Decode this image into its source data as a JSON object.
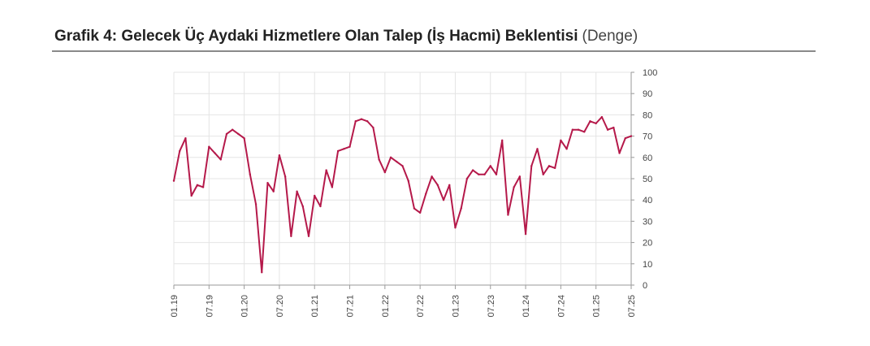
{
  "title": {
    "main": "Grafik 4: Gelecek Üç Aydaki Hizmetlere Olan Talep (İş Hacmi) Beklentisi",
    "sub": "(Denge)"
  },
  "chart_data": {
    "type": "line",
    "ylim": [
      0,
      100
    ],
    "yticks": [
      0,
      10,
      20,
      30,
      40,
      50,
      60,
      70,
      80,
      90,
      100
    ],
    "xtick_labels": [
      "01.19",
      "07.19",
      "01.20",
      "07.20",
      "01.21",
      "07.21",
      "01.22",
      "07.22",
      "01.23",
      "07.23",
      "01.24",
      "07.24",
      "01.25",
      "07.25"
    ],
    "grid": true,
    "y_axis_position": "right",
    "line_color": "#b5194a",
    "series": [
      {
        "x": [
          "01.19",
          "02.19",
          "03.19",
          "04.19",
          "05.19",
          "06.19",
          "07.19",
          "08.19",
          "09.19",
          "10.19",
          "11.19",
          "12.19",
          "01.20",
          "02.20",
          "03.20",
          "04.20",
          "05.20",
          "06.20",
          "07.20",
          "08.20",
          "09.20",
          "10.20",
          "11.20",
          "12.20",
          "01.21",
          "02.21",
          "03.21",
          "04.21",
          "05.21",
          "06.21",
          "07.21",
          "08.21",
          "09.21",
          "10.21",
          "11.21",
          "12.21",
          "01.22",
          "02.22",
          "03.22",
          "04.22",
          "05.22",
          "06.22",
          "07.22",
          "08.22",
          "09.22",
          "10.22",
          "11.22",
          "12.22",
          "01.23",
          "02.23",
          "03.23",
          "04.23",
          "05.23",
          "06.23",
          "07.23",
          "08.23",
          "09.23",
          "10.23",
          "11.23",
          "12.23",
          "01.24",
          "02.24",
          "03.24",
          "04.24",
          "05.24",
          "06.24",
          "07.24",
          "08.24",
          "09.24",
          "10.24",
          "11.24",
          "12.24",
          "01.25",
          "02.25",
          "03.25",
          "04.25",
          "05.25",
          "06.25",
          "07.25"
        ],
        "values": [
          49,
          63,
          69,
          42,
          47,
          46,
          65,
          62,
          59,
          71,
          73,
          71,
          69,
          52,
          38,
          6,
          48,
          44,
          61,
          51,
          23,
          44,
          37,
          23,
          42,
          37,
          54,
          46,
          63,
          64,
          65,
          77,
          78,
          77,
          74,
          59,
          53,
          60,
          58,
          56,
          49,
          36,
          34,
          43,
          51,
          47,
          40,
          47,
          27,
          36,
          50,
          54,
          52,
          52,
          56,
          52,
          68,
          33,
          46,
          51,
          24,
          56,
          64,
          52,
          56,
          55,
          68,
          64,
          73,
          73,
          72,
          77,
          76,
          79,
          73,
          74,
          62,
          69,
          70
        ]
      }
    ]
  }
}
